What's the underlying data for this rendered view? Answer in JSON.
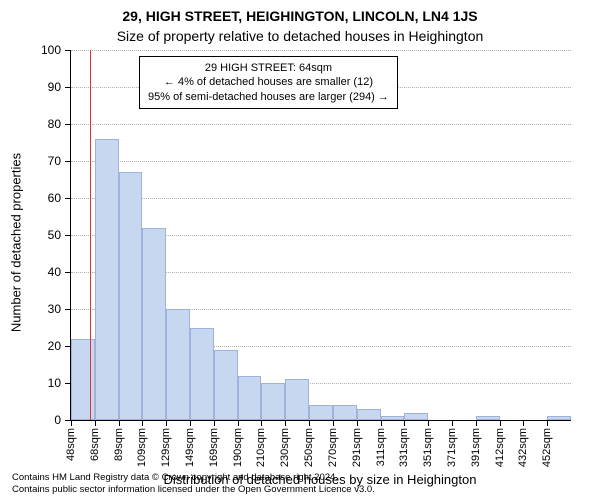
{
  "title_line1": "29, HIGH STREET, HEIGHINGTON, LINCOLN, LN4 1JS",
  "title_line2": "Size of property relative to detached houses in Heighington",
  "y_axis_title": "Number of detached properties",
  "x_axis_title": "Distribution of detached houses by size in Heighington",
  "chart": {
    "type": "histogram",
    "ylim": [
      0,
      100
    ],
    "ytick_step": 10,
    "y_ticks": [
      0,
      10,
      20,
      30,
      40,
      50,
      60,
      70,
      80,
      90,
      100
    ],
    "grid_color": "#b0b0b0",
    "background_color": "#ffffff",
    "bar_fill": "#c7d7f0",
    "bar_stroke": "#9db3d9",
    "bar_stroke_width": 1,
    "ref_line_color": "#e03030",
    "ref_line_x_index": 0.8,
    "bin_labels": [
      "48sqm",
      "68sqm",
      "89sqm",
      "109sqm",
      "129sqm",
      "149sqm",
      "169sqm",
      "190sqm",
      "210sqm",
      "230sqm",
      "250sqm",
      "270sqm",
      "291sqm",
      "311sqm",
      "331sqm",
      "351sqm",
      "371sqm",
      "391sqm",
      "412sqm",
      "432sqm",
      "452sqm"
    ],
    "values": [
      22,
      76,
      67,
      52,
      30,
      25,
      19,
      12,
      10,
      11,
      4,
      4,
      3,
      1,
      2,
      0,
      0,
      1,
      0,
      0,
      1
    ],
    "x_label_fontsize": 11,
    "y_label_fontsize": 12,
    "axis_title_fontsize": 13,
    "title_fontsize": 14
  },
  "annotation": {
    "line1": "29 HIGH STREET: 64sqm",
    "line2": "← 4% of detached houses are smaller (12)",
    "line3": "95% of semi-detached houses are larger (294) →",
    "border_color": "#000000",
    "background": "#ffffff",
    "fontsize": 11
  },
  "footer_line1": "Contains HM Land Registry data © Crown copyright and database right 2024.",
  "footer_line2": "Contains public sector information licensed under the Open Government Licence v3.0."
}
